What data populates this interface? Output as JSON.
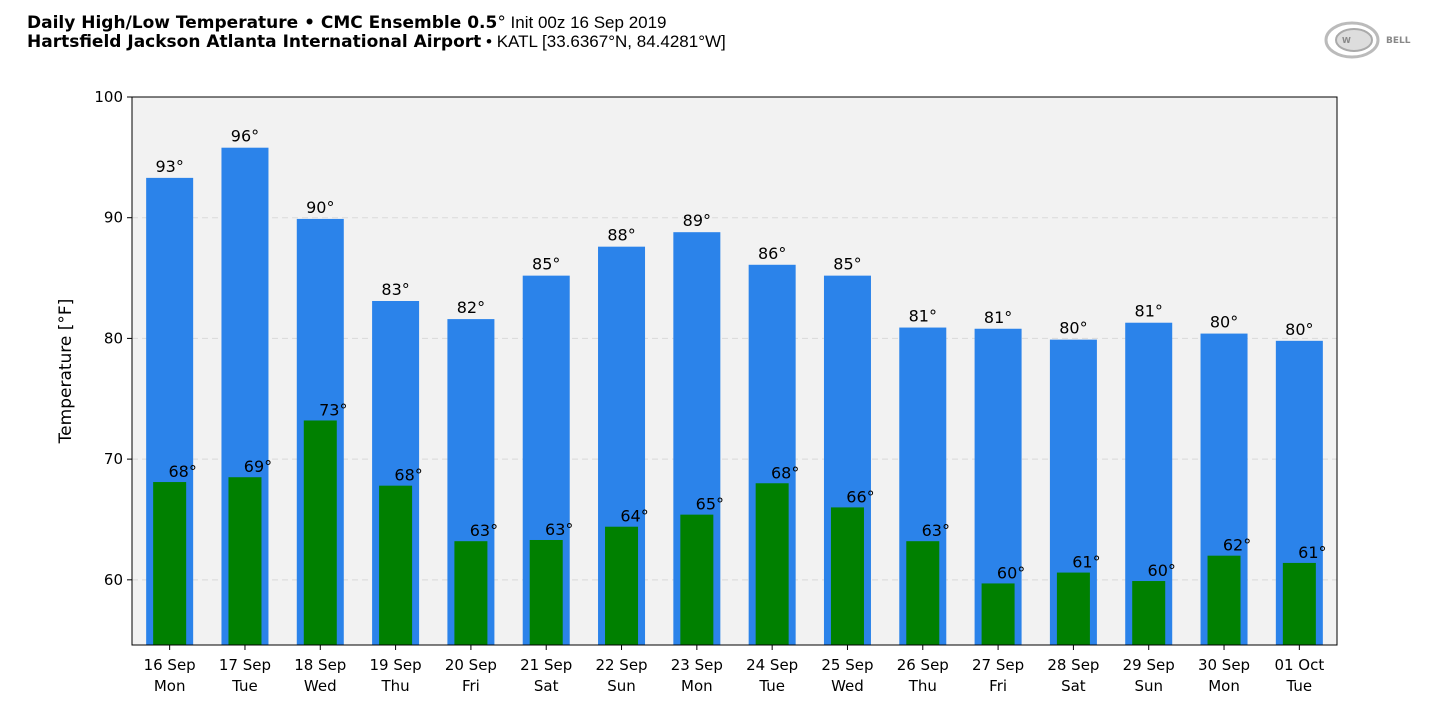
{
  "header": {
    "title_bold": "Daily High/Low Temperature • CMC Ensemble 0.5",
    "title_deg": "°",
    "title_rest": " Init 00z 16 Sep 2019",
    "location_bold": "Hartsfield Jackson Atlanta International Airport",
    "location_rest": " • KATL [33.6367°N, 84.4281°W]"
  },
  "logo": {
    "text": "WeatherBELL"
  },
  "colors": {
    "high": "#2b83ea",
    "low": "#008000",
    "plot_bg": "#f2f2f2",
    "grid": "#d9d9d9"
  },
  "chart_data": {
    "type": "bar",
    "title": "Daily High/Low Temperature • CMC Ensemble 0.5° Init 00z 16 Sep 2019",
    "xlabel": "",
    "ylabel": "Temperature [°F]",
    "ylim": [
      54.6,
      100
    ],
    "yticks": [
      60,
      70,
      80,
      90,
      100
    ],
    "grid": true,
    "categories": [
      [
        "16 Sep",
        "Mon"
      ],
      [
        "17 Sep",
        "Tue"
      ],
      [
        "18 Sep",
        "Wed"
      ],
      [
        "19 Sep",
        "Thu"
      ],
      [
        "20 Sep",
        "Fri"
      ],
      [
        "21 Sep",
        "Sat"
      ],
      [
        "22 Sep",
        "Sun"
      ],
      [
        "23 Sep",
        "Mon"
      ],
      [
        "24 Sep",
        "Tue"
      ],
      [
        "25 Sep",
        "Wed"
      ],
      [
        "26 Sep",
        "Thu"
      ],
      [
        "27 Sep",
        "Fri"
      ],
      [
        "28 Sep",
        "Sat"
      ],
      [
        "29 Sep",
        "Sun"
      ],
      [
        "30 Sep",
        "Mon"
      ],
      [
        "01 Oct",
        "Tue"
      ]
    ],
    "series": [
      {
        "name": "High",
        "values": [
          93.3,
          95.8,
          89.9,
          83.1,
          81.6,
          85.2,
          87.6,
          88.8,
          86.1,
          85.2,
          80.9,
          80.8,
          79.9,
          81.3,
          80.4,
          79.8
        ],
        "labels": [
          "93°",
          "96°",
          "90°",
          "83°",
          "82°",
          "85°",
          "88°",
          "89°",
          "86°",
          "85°",
          "81°",
          "81°",
          "80°",
          "81°",
          "80°",
          "80°"
        ]
      },
      {
        "name": "Low",
        "values": [
          68.1,
          68.5,
          73.2,
          67.8,
          63.2,
          63.3,
          64.4,
          65.4,
          68.0,
          66.0,
          63.2,
          59.7,
          60.6,
          59.9,
          62.0,
          61.4
        ],
        "labels": [
          "68°",
          "69°",
          "73°",
          "68°",
          "63°",
          "63°",
          "64°",
          "65°",
          "68°",
          "66°",
          "63°",
          "60°",
          "61°",
          "60°",
          "62°",
          "61°"
        ]
      }
    ]
  }
}
